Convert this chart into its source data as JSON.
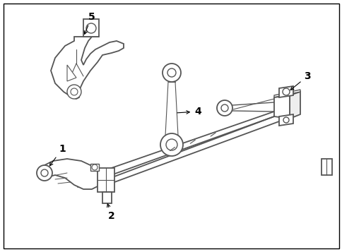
{
  "background_color": "#ffffff",
  "line_color": "#555555",
  "label_color": "#000000",
  "border_color": "#000000",
  "fig_width": 4.85,
  "fig_height": 3.57,
  "dpi": 100
}
